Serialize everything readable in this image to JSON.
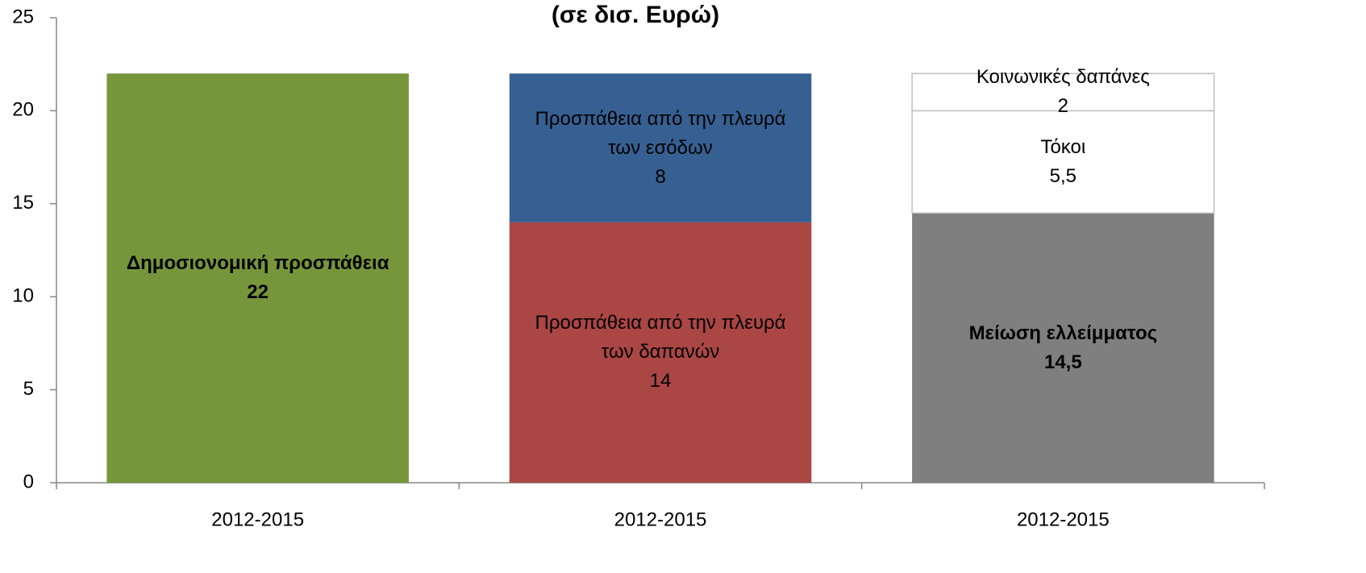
{
  "chart_data": {
    "type": "stacked_bar",
    "title": "(σε δισ. Ευρώ)",
    "categories": [
      "2012-2015",
      "2012-2015",
      "2012-2015"
    ],
    "ylim": [
      0,
      25
    ],
    "yticks": [
      0,
      5,
      10,
      15,
      20,
      25
    ],
    "grid": false,
    "series": [
      {
        "name": "Δημοσιονομική προσπάθεια",
        "color": "#77963b",
        "bold_label": true,
        "values": [
          22,
          null,
          null
        ],
        "value_labels": [
          "22",
          null,
          null
        ]
      },
      {
        "name": "Προσπάθεια από την πλευρά των δαπανών",
        "color": "#aa4644",
        "bold_label": false,
        "values": [
          null,
          14,
          null
        ],
        "value_labels": [
          null,
          "14",
          null
        ]
      },
      {
        "name": "Προσπάθεια από την πλευρά των εσόδων",
        "color": "#376092",
        "bold_label": false,
        "values": [
          null,
          8,
          null
        ],
        "value_labels": [
          null,
          "8",
          null
        ]
      },
      {
        "name": "Μείωση ελλείμματος",
        "color": "#7f7f7f",
        "bold_label": true,
        "values": [
          null,
          null,
          14.5
        ],
        "value_labels": [
          null,
          null,
          "14,5"
        ]
      },
      {
        "name": "Τόκοι",
        "color": "#ffffff",
        "bold_label": false,
        "values": [
          null,
          null,
          5.5
        ],
        "value_labels": [
          null,
          null,
          "5,5"
        ]
      },
      {
        "name": "Κοινωνικές δαπάνες",
        "color": "#ffffff",
        "bold_label": false,
        "values": [
          null,
          null,
          2
        ],
        "value_labels": [
          null,
          null,
          "2"
        ]
      }
    ]
  }
}
